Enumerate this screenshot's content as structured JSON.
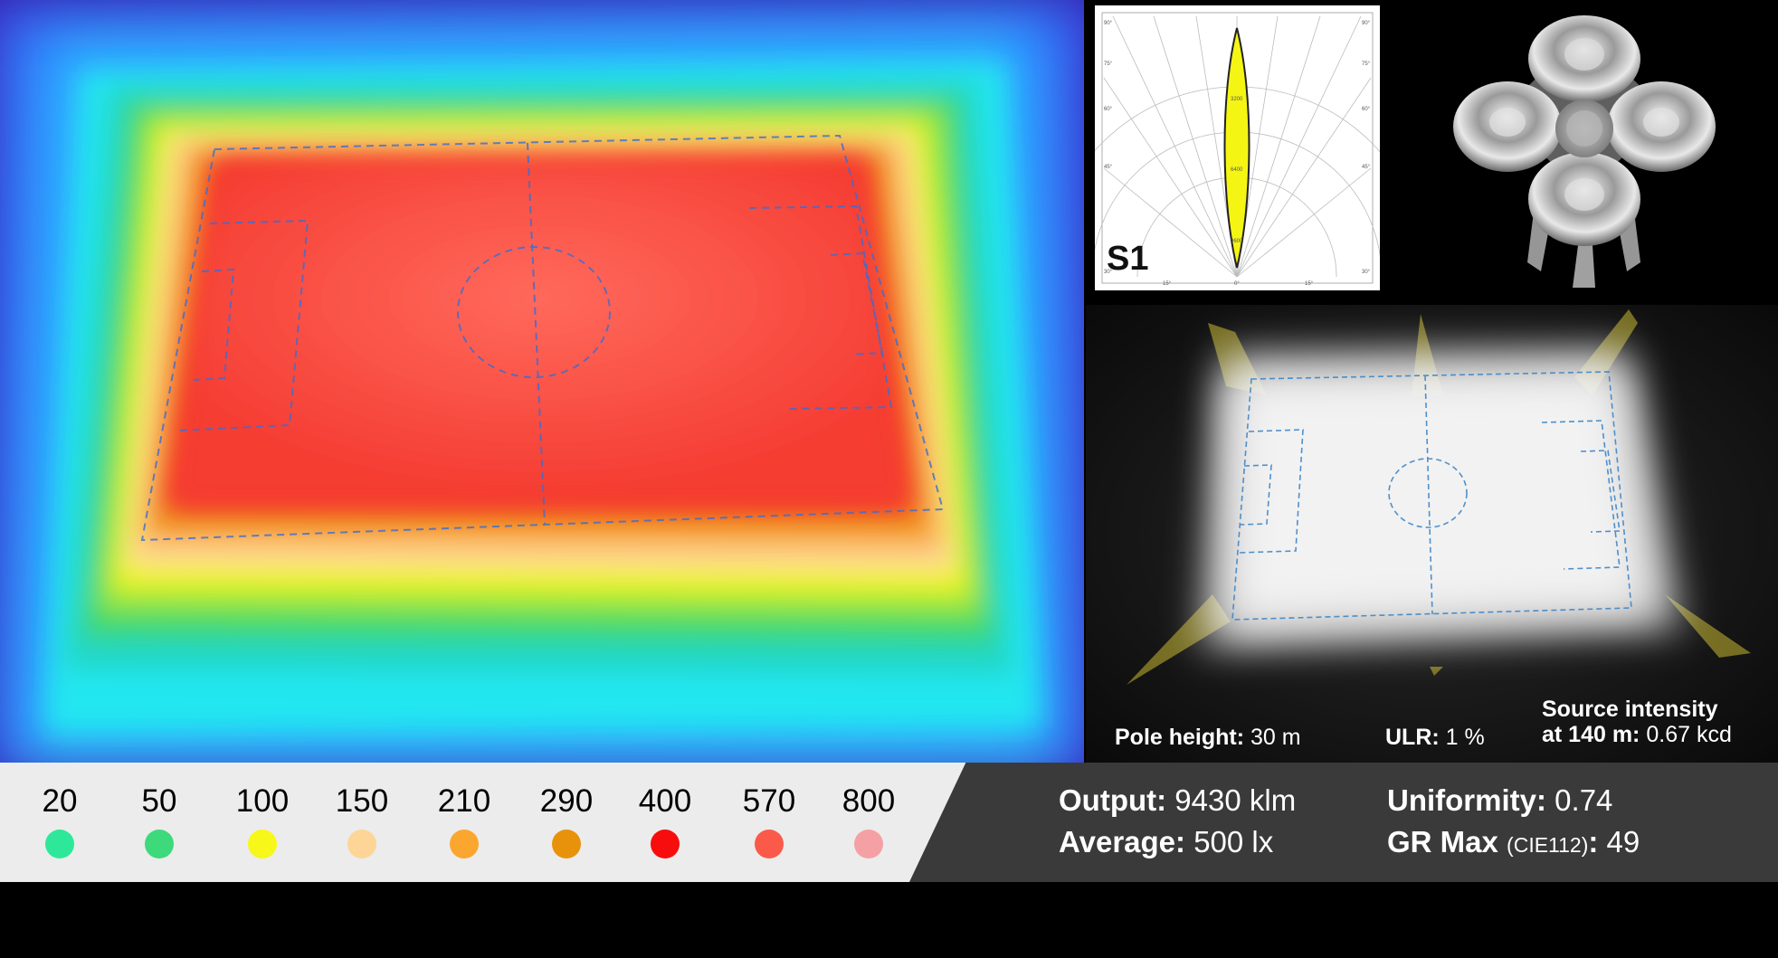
{
  "polar": {
    "label": "S1",
    "angle_labels": [
      "90°",
      "75°",
      "60°",
      "45°",
      "30°",
      "15°",
      "0°",
      "15°",
      "30°",
      "45°",
      "60°",
      "75°",
      "90°"
    ],
    "intensity_labels": [
      "3200",
      "6400",
      "9600"
    ]
  },
  "legend": {
    "items": [
      {
        "value": "20",
        "color": "#2ee89a"
      },
      {
        "value": "50",
        "color": "#3dd97a"
      },
      {
        "value": "100",
        "color": "#f7f71a"
      },
      {
        "value": "150",
        "color": "#fdd596"
      },
      {
        "value": "210",
        "color": "#fba62e"
      },
      {
        "value": "290",
        "color": "#e8920c"
      },
      {
        "value": "400",
        "color": "#f70d0d"
      },
      {
        "value": "570",
        "color": "#fb5a4a"
      },
      {
        "value": "800",
        "color": "#f5a0a5"
      }
    ]
  },
  "stats": {
    "output_label": "Output:",
    "output_value": "9430 klm",
    "average_label": "Average:",
    "average_value": "500 lx",
    "uniformity_label": "Uniformity:",
    "uniformity_value": "0.74",
    "gr_label": "GR Max",
    "gr_sub": "(CIE112)",
    "gr_colon": ":",
    "gr_value": "49"
  },
  "render": {
    "pole_label": "Pole height:",
    "pole_value": "30 m",
    "ulr_label": "ULR:",
    "ulr_value": "1 %",
    "source_line1": "Source intensity",
    "source_label": "at 140 m:",
    "source_value": "0.67 kcd"
  },
  "colors": {
    "red_field": "#f4473c",
    "panel_dark": "#3a3a3a",
    "legend_bg": "#ececec"
  }
}
